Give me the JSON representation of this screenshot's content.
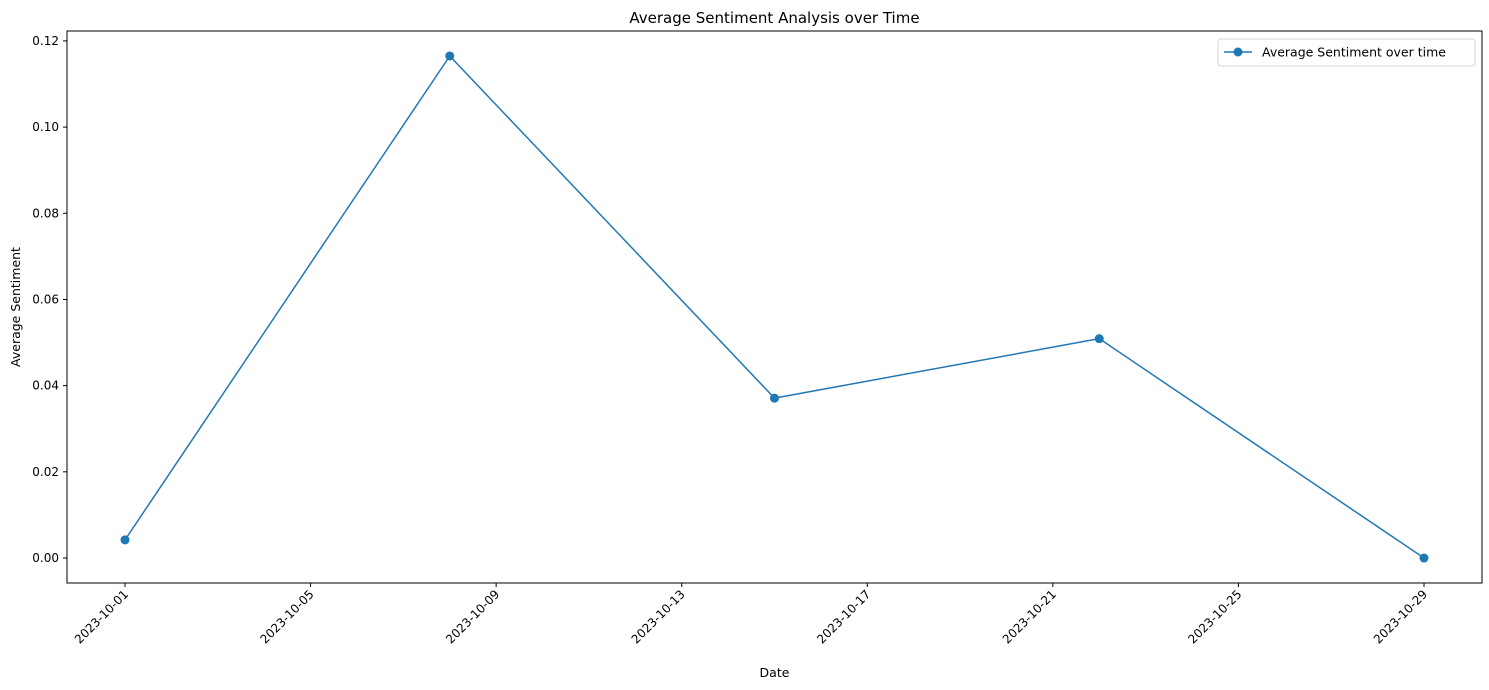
{
  "chart_data": {
    "type": "line",
    "title": "Average Sentiment Analysis over Time",
    "xlabel": "Date",
    "ylabel": "Average Sentiment",
    "x": [
      "2023-10-01",
      "2023-10-08",
      "2023-10-15",
      "2023-10-22",
      "2023-10-29"
    ],
    "series": [
      {
        "name": "Average Sentiment over time",
        "values": [
          0.0042,
          0.1165,
          0.0371,
          0.0509,
          0.0
        ],
        "color": "#1f77b4"
      }
    ],
    "x_ticks": [
      "2023-10-01",
      "2023-10-05",
      "2023-10-09",
      "2023-10-13",
      "2023-10-17",
      "2023-10-21",
      "2023-10-25",
      "2023-10-29"
    ],
    "y_ticks": [
      "0.00",
      "0.02",
      "0.04",
      "0.06",
      "0.08",
      "0.10",
      "0.12"
    ],
    "ylim": [
      -0.0058,
      0.1223
    ],
    "xlim": [
      "2023-09-29T18:00",
      "2023-10-30T06:00"
    ],
    "legend_position": "top-right",
    "grid": false
  }
}
